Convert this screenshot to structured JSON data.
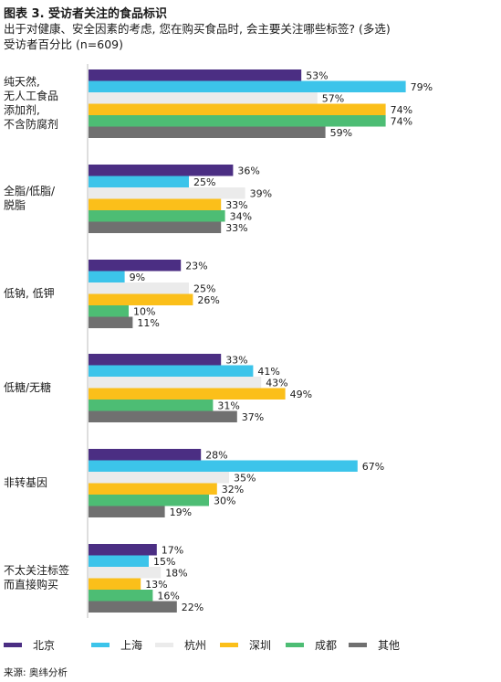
{
  "title": "图表 3. 受访者关注的食品标识",
  "subtitle_line1": "出于对健康、安全因素的考虑, 您在购买食品时, 会主要关注哪些标签? (多选)",
  "subtitle_line2": "受访者百分比 (n=609)",
  "source": "来源: 奥纬分析",
  "chart_data": {
    "type": "bar",
    "orientation": "horizontal",
    "categories": [
      [
        "纯天然,",
        "无人工食品",
        "添加剂,",
        "不含防腐剂"
      ],
      [
        "全脂/低脂/",
        "脱脂"
      ],
      [
        "低钠, 低钾"
      ],
      [
        "低糖/无糖"
      ],
      [
        "非转基因"
      ],
      [
        "不太关注标签",
        "而直接购买"
      ]
    ],
    "series": [
      {
        "name": "北京",
        "color": "#4b2e83",
        "values": [
          53,
          36,
          23,
          33,
          28,
          17
        ]
      },
      {
        "name": "上海",
        "color": "#3cc4ea",
        "values": [
          79,
          25,
          9,
          41,
          67,
          15
        ]
      },
      {
        "name": "杭州",
        "color": "#ebebeb",
        "values": [
          57,
          39,
          25,
          43,
          35,
          18
        ]
      },
      {
        "name": "深圳",
        "color": "#fbbf1a",
        "values": [
          74,
          33,
          26,
          49,
          32,
          13
        ]
      },
      {
        "name": "成都",
        "color": "#4dbd74",
        "values": [
          74,
          34,
          10,
          31,
          30,
          16
        ]
      },
      {
        "name": "其他",
        "color": "#707070",
        "values": [
          59,
          33,
          11,
          37,
          19,
          22
        ]
      }
    ],
    "value_suffix": "%",
    "xlim": [
      0,
      100
    ],
    "grid": false,
    "legend_position": "bottom"
  }
}
